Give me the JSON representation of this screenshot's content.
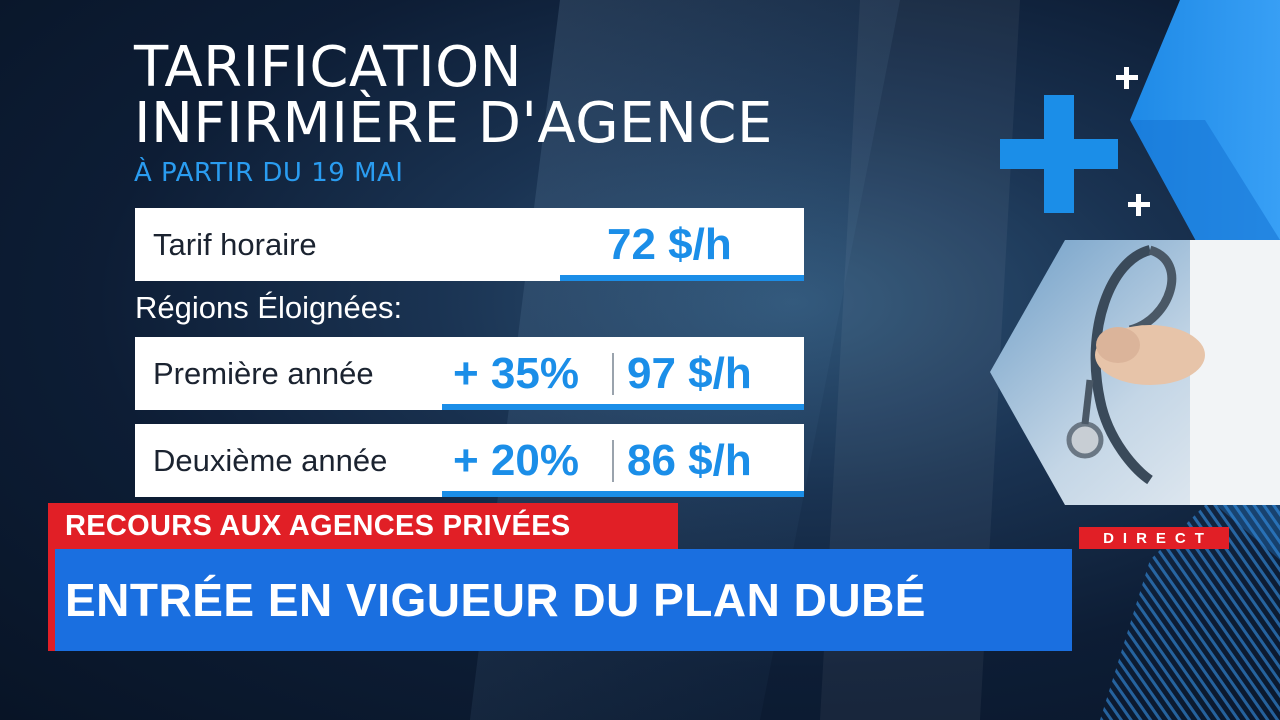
{
  "headline": {
    "title_line1": "TARIFICATION",
    "title_line2": "INFIRMIÈRE D'AGENCE",
    "subtitle": "À PARTIR DU 19 MAI"
  },
  "rates": {
    "hourly": {
      "label": "Tarif horaire",
      "value": "72 $/h"
    },
    "regions_heading": "Régions Éloignées:",
    "first_year": {
      "label": "Première année",
      "increase": "+ 35%",
      "value": "97 $/h"
    },
    "second_year": {
      "label": "Deuxième année",
      "increase": "+ 20%",
      "value": "86 $/h"
    }
  },
  "lower_third": {
    "kicker": "RECOURS AUX AGENCES PRIVÉES",
    "headline": "ENTRÉE EN VIGUEUR DU PLAN DUBÉ",
    "live_badge": "DIRECT"
  },
  "colors": {
    "accent_blue": "#1b8ee8",
    "banner_blue": "#1a6fe0",
    "banner_red": "#e11f26",
    "subtitle_blue": "#2a9cf0"
  },
  "icons": [
    "plus-icon",
    "stethoscope-photo"
  ]
}
